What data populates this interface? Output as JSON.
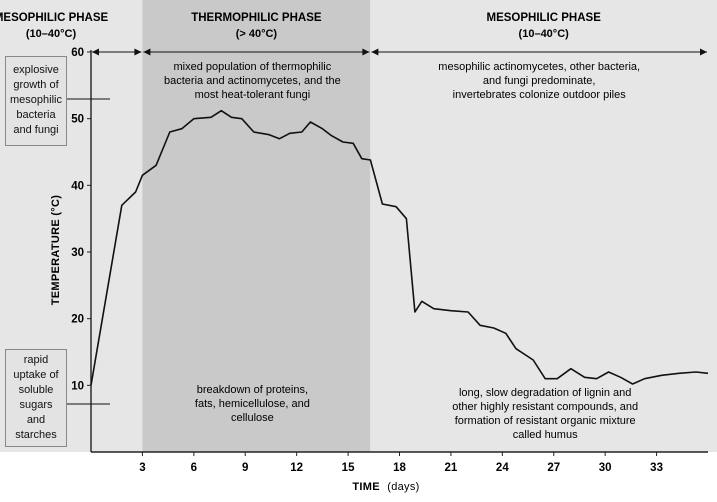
{
  "chart_data": {
    "type": "line",
    "xlabel": "TIME",
    "xlabel_unit": "(days)",
    "ylabel": "TEMPERATURE (°C)",
    "xlim": [
      0,
      36
    ],
    "ylim": [
      0,
      60
    ],
    "x_ticks": [
      3,
      6,
      9,
      12,
      15,
      18,
      21,
      24,
      27,
      30,
      33
    ],
    "y_ticks": [
      10,
      20,
      30,
      40,
      50,
      60
    ],
    "series": [
      {
        "x": [
          0,
          1.8,
          2.6,
          3.0,
          3.8,
          4.6,
          5.3,
          6.0,
          7.0,
          7.6,
          8.2,
          8.8,
          9.5,
          10.4,
          11.0,
          11.6,
          12.3,
          12.8,
          13.5,
          14.0,
          14.7,
          15.3,
          15.8,
          16.3,
          17.0,
          17.8,
          18.4,
          18.9,
          19.3,
          20.0,
          21.0,
          22.0,
          22.7,
          23.5,
          24.2,
          24.8,
          25.8,
          26.5,
          27.2,
          28.0,
          28.8,
          29.5,
          30.2,
          30.9,
          31.6,
          32.3,
          33.3,
          34.3,
          35.3,
          36.0
        ],
        "y": [
          10,
          37,
          39,
          41.5,
          43,
          48,
          48.5,
          50,
          50.2,
          51.2,
          50.2,
          50,
          48,
          47.6,
          47,
          47.8,
          48,
          49.5,
          48.5,
          47.5,
          46.5,
          46.3,
          44,
          43.8,
          37.2,
          36.8,
          35,
          21,
          22.6,
          21.5,
          21.2,
          21,
          19,
          18.6,
          17.8,
          15.5,
          13.8,
          11,
          11,
          12.5,
          11.2,
          11,
          12,
          11.2,
          10.2,
          11,
          11.5,
          11.8,
          12,
          11.8
        ]
      }
    ],
    "phases": [
      {
        "title": "MESOPHILIC PHASE",
        "range": "(10–40°C)",
        "x_start": 0,
        "x_end": 3,
        "note_top": "",
        "note_bottom": "",
        "shade": "#e6e6e6"
      },
      {
        "title": "THERMOPHILIC PHASE",
        "range": "(> 40°C)",
        "x_start": 3,
        "x_end": 16.3,
        "note_top": [
          "mixed population of thermophilic",
          "bacteria and actinomycetes, and the",
          "most heat-tolerant fungi"
        ],
        "note_bottom": [
          "breakdown of proteins,",
          "fats, hemicellulose, and",
          "cellulose"
        ],
        "shade": "#c9c9c9"
      },
      {
        "title": "MESOPHILIC PHASE",
        "range": "(10–40°C)",
        "x_start": 16.3,
        "x_end": 36,
        "note_top": [
          "mesophilic actinomycetes, other bacteria,",
          "and fungi predominate,",
          "invertebrates colonize outdoor piles"
        ],
        "note_bottom": [
          "long, slow degradation of lignin and",
          "other highly resistant compounds, and",
          "formation of resistant organic mixture",
          "called humus"
        ],
        "shade": "#e6e6e6"
      }
    ],
    "side_notes": {
      "top": [
        "explosive",
        "growth of",
        "mesophilic",
        "bacteria",
        "and fungi"
      ],
      "bottom": [
        "rapid",
        "uptake of",
        "soluble",
        "sugars",
        "and",
        "starches"
      ]
    },
    "colors": {
      "line": "#111111",
      "axis": "#222222",
      "box_fill": "#e3e3e3"
    }
  }
}
